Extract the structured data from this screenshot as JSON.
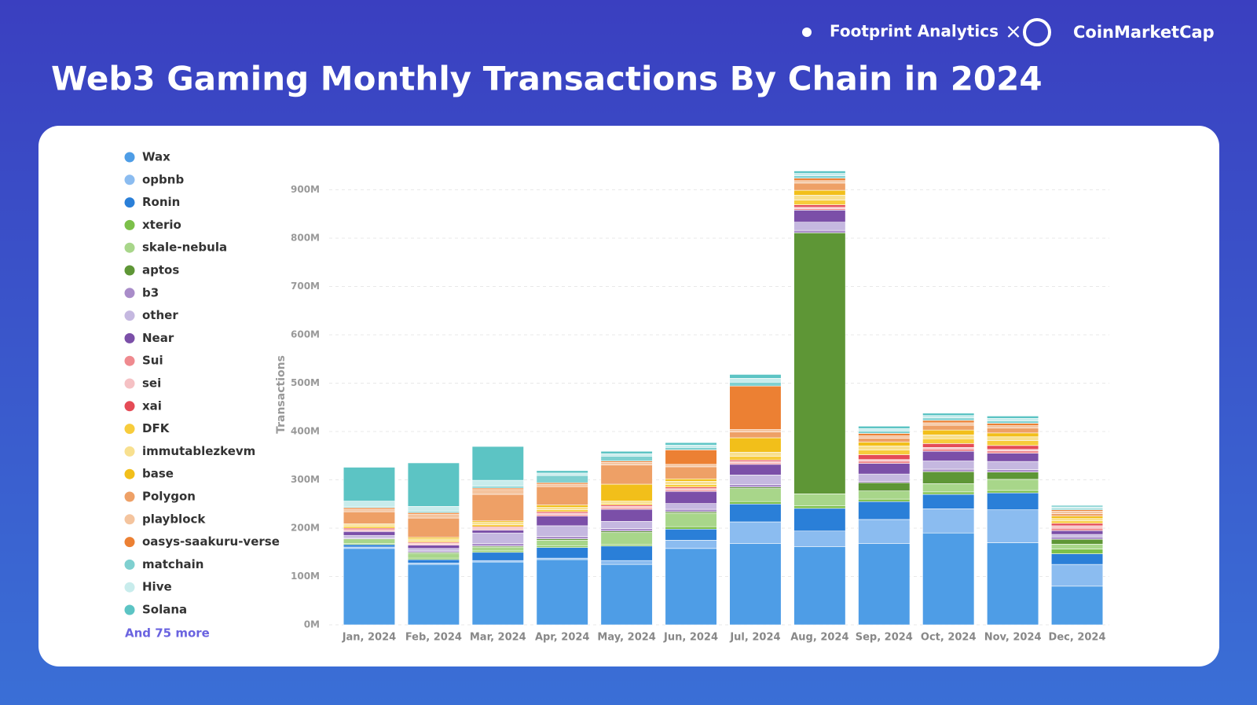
{
  "header": {
    "brand_1": "Footprint Analytics",
    "separator": "×",
    "brand_2": "CoinMarketCap"
  },
  "chart_data": {
    "type": "stacked-bar",
    "title": "Web3 Gaming Monthly Transactions By Chain in 2024",
    "y_label": "Transactions",
    "legend_more": "And 75 more",
    "categories": [
      "Jan, 2024",
      "Feb, 2024",
      "Mar, 2024",
      "Apr, 2024",
      "May, 2024",
      "Jun, 2024",
      "Jul, 2024",
      "Aug, 2024",
      "Sep, 2024",
      "Oct, 2024",
      "Nov, 2024",
      "Dec, 2024"
    ],
    "ylim": [
      0,
      1000
    ],
    "yticks": [
      {
        "value": 0,
        "label": "0M"
      },
      {
        "value": 100,
        "label": "100M"
      },
      {
        "value": 200,
        "label": "200M"
      },
      {
        "value": 300,
        "label": "300M"
      },
      {
        "value": 400,
        "label": "400M"
      },
      {
        "value": 500,
        "label": "500M"
      },
      {
        "value": 600,
        "label": "600M"
      },
      {
        "value": 700,
        "label": "700M"
      },
      {
        "value": 800,
        "label": "800M"
      },
      {
        "value": 900,
        "label": "900M"
      }
    ],
    "grid": true,
    "series": [
      {
        "name": "Wax",
        "color": "#4e9de6",
        "values": [
          158,
          125,
          130,
          135,
          125,
          158,
          168,
          162,
          168,
          190,
          170,
          80
        ]
      },
      {
        "name": "opbnb",
        "color": "#8bbcf0",
        "values": [
          3,
          3,
          3,
          3,
          8,
          17,
          45,
          32,
          50,
          50,
          68,
          45
        ]
      },
      {
        "name": "Ronin",
        "color": "#2a7fd8",
        "values": [
          5,
          7,
          17,
          22,
          30,
          23,
          37,
          47,
          37,
          30,
          35,
          22
        ]
      },
      {
        "name": "xterio",
        "color": "#7cc04a",
        "values": [
          2,
          3,
          3,
          3,
          3,
          5,
          5,
          5,
          5,
          5,
          5,
          10
        ]
      },
      {
        "name": "skale-nebula",
        "color": "#a8d68a",
        "values": [
          10,
          10,
          8,
          12,
          25,
          28,
          27,
          25,
          17,
          17,
          23,
          10
        ]
      },
      {
        "name": "aptos",
        "color": "#5e9636",
        "values": [
          0,
          2,
          2,
          3,
          3,
          3,
          3,
          540,
          17,
          25,
          15,
          10
        ]
      },
      {
        "name": "b3",
        "color": "#a98cc9",
        "values": [
          2,
          3,
          5,
          5,
          5,
          5,
          5,
          5,
          3,
          5,
          5,
          5
        ]
      },
      {
        "name": "other",
        "color": "#c5b8e0",
        "values": [
          5,
          5,
          22,
          22,
          15,
          12,
          20,
          17,
          15,
          17,
          17,
          5
        ]
      },
      {
        "name": "Near",
        "color": "#7b4fa8",
        "values": [
          8,
          7,
          6,
          20,
          25,
          25,
          22,
          25,
          22,
          20,
          17,
          8
        ]
      },
      {
        "name": "Sui",
        "color": "#ef8a8f",
        "values": [
          2,
          2,
          2,
          3,
          3,
          3,
          3,
          3,
          5,
          5,
          5,
          5
        ]
      },
      {
        "name": "sei",
        "color": "#f5c1c4",
        "values": [
          2,
          2,
          3,
          3,
          3,
          3,
          3,
          3,
          3,
          3,
          3,
          5
        ]
      },
      {
        "name": "xai",
        "color": "#e54b56",
        "values": [
          3,
          2,
          2,
          3,
          3,
          3,
          3,
          5,
          10,
          8,
          8,
          5
        ]
      },
      {
        "name": "DFK",
        "color": "#f7cc3c",
        "values": [
          4,
          3,
          4,
          4,
          3,
          5,
          8,
          10,
          10,
          10,
          10,
          5
        ]
      },
      {
        "name": "immutablezkevm",
        "color": "#f8e08f",
        "values": [
          3,
          4,
          5,
          5,
          5,
          7,
          8,
          10,
          8,
          8,
          8,
          5
        ]
      },
      {
        "name": "base",
        "color": "#f2bf1a",
        "values": [
          2,
          3,
          3,
          5,
          35,
          5,
          30,
          10,
          8,
          10,
          8,
          5
        ]
      },
      {
        "name": "Polygon",
        "color": "#eea066",
        "values": [
          25,
          40,
          55,
          38,
          40,
          25,
          12,
          15,
          8,
          10,
          10,
          5
        ]
      },
      {
        "name": "playblock",
        "color": "#f4c49e",
        "values": [
          5,
          8,
          10,
          5,
          5,
          5,
          5,
          5,
          5,
          5,
          5,
          5
        ]
      },
      {
        "name": "oasys-saakuru-verse",
        "color": "#ec8033",
        "values": [
          3,
          3,
          3,
          3,
          3,
          30,
          90,
          5,
          5,
          5,
          5,
          3
        ]
      },
      {
        "name": "matchain",
        "color": "#7fd0d0",
        "values": [
          2,
          3,
          4,
          15,
          10,
          5,
          8,
          5,
          5,
          5,
          5,
          3
        ]
      },
      {
        "name": "Hive",
        "color": "#c8ecec",
        "values": [
          12,
          10,
          12,
          5,
          5,
          5,
          8,
          5,
          5,
          5,
          5,
          3
        ]
      },
      {
        "name": "Solana",
        "color": "#5cc4c4",
        "values": [
          70,
          90,
          70,
          5,
          5,
          5,
          8,
          5,
          5,
          5,
          5,
          3
        ]
      }
    ]
  }
}
